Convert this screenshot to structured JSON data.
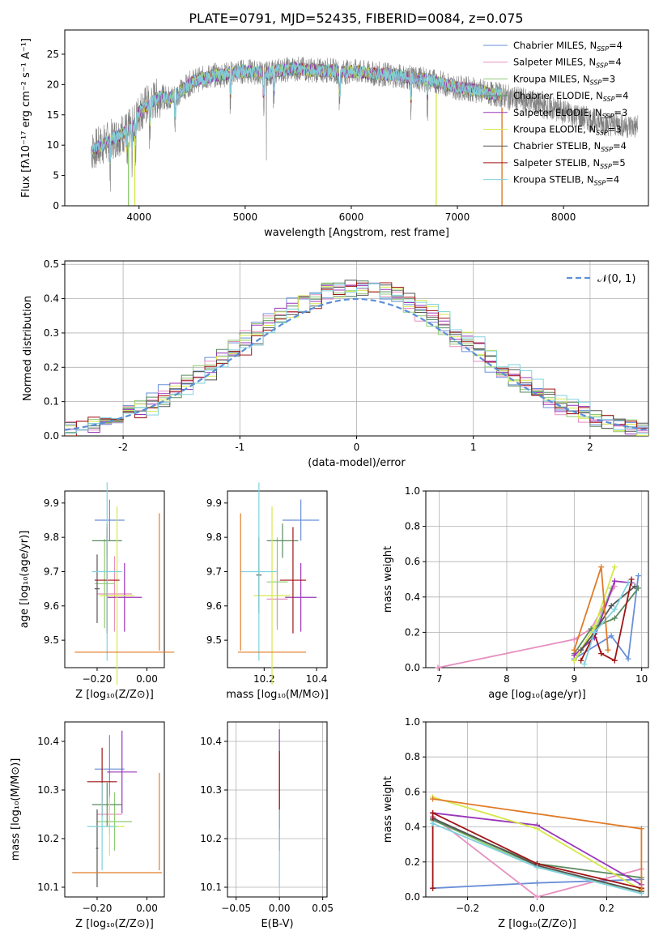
{
  "figure": {
    "title": "PLATE=0791, MJD=52435, FIBERID=0084, z=0.075"
  },
  "colors": {
    "series": [
      "#6a8fd8",
      "#e68fc0",
      "#8fcc72",
      "#5a8a60",
      "#9a35b8",
      "#d6e84a",
      "#555555",
      "#a01515",
      "#7fd2de"
    ],
    "orange": "#e07b28",
    "normal": "#5b8fd9",
    "grid": "#b0b0b0"
  },
  "chart_data": [
    {
      "id": "spectrum",
      "type": "line",
      "xlabel": "wavelength [Angstrom, rest frame]",
      "ylabel": "Flux [fλ10⁻¹⁷ erg cm⁻² s⁻¹ A⁻¹]",
      "xlim": [
        3300,
        8800
      ],
      "ylim": [
        0,
        29
      ],
      "xticks": [
        4000,
        5000,
        6000,
        7000,
        8000
      ],
      "yticks": [
        0,
        5,
        10,
        15,
        20,
        25
      ],
      "grid": false,
      "legend_position": "top-right",
      "legend": [
        {
          "label": "Chabrier MILES, N",
          "sub": "SSP",
          "suffix": "=4"
        },
        {
          "label": "Salpeter MILES, N",
          "sub": "SSP",
          "suffix": "=4"
        },
        {
          "label": "Kroupa MILES, N",
          "sub": "SSP",
          "suffix": "=3"
        },
        {
          "label": "Chabrier ELODIE, N",
          "sub": "SSP",
          "suffix": "=4"
        },
        {
          "label": "Salpeter ELODIE, N",
          "sub": "SSP",
          "suffix": "=3"
        },
        {
          "label": "Kroupa ELODIE, N",
          "sub": "SSP",
          "suffix": "=3"
        },
        {
          "label": "Chabrier STELIB, N",
          "sub": "SSP",
          "suffix": "=4"
        },
        {
          "label": "Salpeter STELIB, N",
          "sub": "SSP",
          "suffix": "=5"
        },
        {
          "label": "Kroupa STELIB, N",
          "sub": "SSP",
          "suffix": "=4"
        }
      ],
      "continuum": [
        [
          3550,
          9
        ],
        [
          3650,
          10
        ],
        [
          3750,
          11
        ],
        [
          3850,
          12
        ],
        [
          3950,
          13
        ],
        [
          4000,
          15.5
        ],
        [
          4100,
          17
        ],
        [
          4200,
          18
        ],
        [
          4300,
          17.8
        ],
        [
          4400,
          19
        ],
        [
          4500,
          20.5
        ],
        [
          4600,
          21
        ],
        [
          4700,
          21.5
        ],
        [
          4800,
          21.6
        ],
        [
          4900,
          22
        ],
        [
          5000,
          22.2
        ],
        [
          5100,
          22
        ],
        [
          5200,
          21.8
        ],
        [
          5300,
          22.3
        ],
        [
          5400,
          22.5
        ],
        [
          5500,
          22.6
        ],
        [
          5600,
          22.4
        ],
        [
          5700,
          22.3
        ],
        [
          5800,
          22.4
        ],
        [
          5900,
          22.0
        ],
        [
          6000,
          22.2
        ],
        [
          6100,
          22.0
        ],
        [
          6200,
          21.8
        ],
        [
          6300,
          21.7
        ],
        [
          6400,
          21.5
        ],
        [
          6500,
          21.3
        ],
        [
          6600,
          21.0
        ],
        [
          6700,
          20.8
        ],
        [
          6800,
          20.5
        ],
        [
          6900,
          20.0
        ],
        [
          7000,
          19.5
        ],
        [
          7100,
          19.3
        ],
        [
          7200,
          19.0
        ],
        [
          7300,
          18.5
        ],
        [
          7400,
          18.3
        ],
        [
          7500,
          17.8
        ],
        [
          7600,
          17.5
        ],
        [
          7700,
          17.2
        ],
        [
          7800,
          16.5
        ],
        [
          7900,
          16.0
        ],
        [
          8000,
          15.5
        ],
        [
          8100,
          15.0
        ],
        [
          8200,
          14.5
        ],
        [
          8300,
          14.0
        ],
        [
          8400,
          13.5
        ],
        [
          8500,
          13.5
        ],
        [
          8600,
          13.2
        ],
        [
          8700,
          13.0
        ]
      ],
      "model_range": [
        3550,
        7420
      ]
    },
    {
      "id": "residual-histogram",
      "type": "bar",
      "xlabel": "(data-model)/error",
      "ylabel": "Normed distribution",
      "xlim": [
        -2.5,
        2.5
      ],
      "ylim": [
        0,
        0.51
      ],
      "xticks": [
        -2,
        -1,
        0,
        1,
        2
      ],
      "yticks": [
        0.0,
        0.1,
        0.2,
        0.3,
        0.4,
        0.5
      ],
      "grid": true,
      "legend_position": "top-right",
      "normal_label": "𝒩(0, 1)",
      "bin_width": 0.1
    },
    {
      "id": "age-vs-z",
      "type": "scatter",
      "xlabel": "Z [log₁₀(Z/Z⊙)]",
      "ylabel": "age  [log₁₀(age/yr)]",
      "xlim": [
        -0.33,
        0.07
      ],
      "ylim": [
        9.42,
        9.935
      ],
      "xticks": [
        -0.2,
        0.0
      ],
      "xticklabels": [
        "−0.20",
        "0.00"
      ],
      "yticks": [
        9.5,
        9.6,
        9.7,
        9.8,
        9.9
      ],
      "points": [
        {
          "x": -0.15,
          "y": 9.85,
          "xerr": 0.06,
          "yerr": 0.06,
          "c": 0
        },
        {
          "x": -0.13,
          "y": 9.635,
          "xerr": 0.07,
          "yerr": 0.11,
          "c": 1
        },
        {
          "x": -0.17,
          "y": 9.665,
          "xerr": 0.04,
          "yerr": 0.13,
          "c": 2
        },
        {
          "x": -0.16,
          "y": 9.79,
          "xerr": 0.06,
          "yerr": 0.05,
          "c": 3
        },
        {
          "x": -0.09,
          "y": 9.625,
          "xerr": 0.07,
          "yerr": 0.1,
          "c": 4
        },
        {
          "x": -0.12,
          "y": 9.63,
          "xerr": 0.07,
          "yerr": 0.26,
          "c": 5
        },
        {
          "x": -0.2,
          "y": 9.65,
          "xerr": 0.01,
          "yerr": 0.1,
          "c": 6
        },
        {
          "x": -0.16,
          "y": 9.675,
          "xerr": 0.05,
          "yerr": 0.155,
          "c": 7
        },
        {
          "x": -0.16,
          "y": 9.7,
          "xerr": 0.06,
          "yerr": 0.26,
          "c": 8
        },
        {
          "x": -0.09,
          "y": 9.465,
          "xerr": 0.2,
          "yerr": 0,
          "c": "orange"
        },
        {
          "x": 0.05,
          "y": 9.67,
          "xerr": 0,
          "yerr": 0.2,
          "c": "orange"
        }
      ]
    },
    {
      "id": "age-vs-mass",
      "type": "scatter",
      "xlabel": "mass [log₁₀(M/M⊙)]",
      "ylabel": "",
      "xlim": [
        10.06,
        10.44
      ],
      "ylim": [
        9.42,
        9.935
      ],
      "xticks": [
        10.2,
        10.4
      ],
      "xticklabels": [
        "10.2",
        "10.4"
      ],
      "yticks": [
        9.5,
        9.6,
        9.7,
        9.8,
        9.9
      ],
      "points": [
        {
          "x": 10.34,
          "y": 9.85,
          "xerr": 0.07,
          "yerr": 0.06,
          "c": 0
        },
        {
          "x": 10.25,
          "y": 9.62,
          "xerr": 0.04,
          "yerr": 0.09,
          "c": 1
        },
        {
          "x": 10.25,
          "y": 9.67,
          "xerr": 0.04,
          "yerr": 0.13,
          "c": 2
        },
        {
          "x": 10.27,
          "y": 9.79,
          "xerr": 0.06,
          "yerr": 0.05,
          "c": 3
        },
        {
          "x": 10.34,
          "y": 9.625,
          "xerr": 0.06,
          "yerr": 0.1,
          "c": 4
        },
        {
          "x": 10.23,
          "y": 9.63,
          "xerr": 0.07,
          "yerr": 0.26,
          "c": 5
        },
        {
          "x": 10.18,
          "y": 9.69,
          "xerr": 0.01,
          "yerr": 0.11,
          "c": 6
        },
        {
          "x": 10.31,
          "y": 9.675,
          "xerr": 0.05,
          "yerr": 0.155,
          "c": 7
        },
        {
          "x": 10.18,
          "y": 9.7,
          "xerr": 0.07,
          "yerr": 0.26,
          "c": 8
        },
        {
          "x": 10.23,
          "y": 9.465,
          "xerr": 0.13,
          "yerr": 0,
          "c": "orange"
        },
        {
          "x": 10.11,
          "y": 9.67,
          "xerr": 0,
          "yerr": 0.2,
          "c": "orange"
        }
      ]
    },
    {
      "id": "weight-vs-age",
      "type": "line",
      "xlabel": "age  [log₁₀(age/yr)]",
      "ylabel": "mass weight",
      "xlim": [
        6.8,
        10.1
      ],
      "ylim": [
        0,
        1
      ],
      "xticks": [
        7,
        8,
        9,
        10
      ],
      "yticks": [
        0.0,
        0.2,
        0.4,
        0.6,
        0.8,
        1.0
      ],
      "grid": true,
      "series": [
        {
          "c": 0,
          "points": [
            [
              9.0,
              0.05
            ],
            [
              9.55,
              0.18
            ],
            [
              9.8,
              0.05
            ],
            [
              9.95,
              0.52
            ]
          ]
        },
        {
          "c": 1,
          "points": [
            [
              6.98,
              0.0
            ],
            [
              9.0,
              0.16
            ],
            [
              9.25,
              0.22
            ],
            [
              9.6,
              0.46
            ]
          ]
        },
        {
          "c": 2,
          "points": [
            [
              9.0,
              0.04
            ],
            [
              9.3,
              0.2
            ],
            [
              9.55,
              0.45
            ]
          ]
        },
        {
          "c": 3,
          "points": [
            [
              9.0,
              0.08
            ],
            [
              9.25,
              0.22
            ],
            [
              9.6,
              0.28
            ],
            [
              9.95,
              0.45
            ]
          ]
        },
        {
          "c": 4,
          "points": [
            [
              9.0,
              0.07
            ],
            [
              9.3,
              0.17
            ],
            [
              9.6,
              0.49
            ],
            [
              9.85,
              0.48
            ]
          ]
        },
        {
          "c": 5,
          "points": [
            [
              9.0,
              0.04
            ],
            [
              9.3,
              0.23
            ],
            [
              9.6,
              0.57
            ]
          ]
        },
        {
          "c": 6,
          "points": [
            [
              9.1,
              0.1
            ],
            [
              9.3,
              0.2
            ],
            [
              9.55,
              0.35
            ],
            [
              9.9,
              0.46
            ]
          ]
        },
        {
          "c": 7,
          "points": [
            [
              9.1,
              0.04
            ],
            [
              9.3,
              0.19
            ],
            [
              9.4,
              0.08
            ],
            [
              9.6,
              0.04
            ],
            [
              9.85,
              0.5
            ]
          ]
        },
        {
          "c": 8,
          "points": [
            [
              9.15,
              0.02
            ],
            [
              9.3,
              0.2
            ],
            [
              9.6,
              0.33
            ],
            [
              9.8,
              0.48
            ]
          ]
        },
        {
          "c": "orange",
          "points": [
            [
              9.0,
              0.1
            ],
            [
              9.4,
              0.57
            ],
            [
              9.5,
              0.1
            ]
          ]
        }
      ]
    },
    {
      "id": "mass-vs-z",
      "type": "scatter",
      "xlabel": "Z [log₁₀(Z/Z⊙)]",
      "ylabel": "mass [log₁₀(M/M⊙)]",
      "xlim": [
        -0.33,
        0.07
      ],
      "ylim": [
        10.08,
        10.44
      ],
      "xticks": [
        -0.2,
        0.0
      ],
      "xticklabels": [
        "−0.20",
        "0.00"
      ],
      "yticks": [
        10.1,
        10.2,
        10.3,
        10.4
      ],
      "points": [
        {
          "x": -0.15,
          "y": 10.343,
          "xerr": 0.06,
          "yerr": 0.07,
          "c": 0
        },
        {
          "x": -0.15,
          "y": 10.25,
          "xerr": 0.05,
          "yerr": 0.04,
          "c": 1
        },
        {
          "x": -0.13,
          "y": 10.235,
          "xerr": 0.07,
          "yerr": 0.06,
          "c": 2
        },
        {
          "x": -0.16,
          "y": 10.27,
          "xerr": 0.06,
          "yerr": 0.045,
          "c": 3
        },
        {
          "x": -0.1,
          "y": 10.337,
          "xerr": 0.06,
          "yerr": 0.085,
          "c": 4
        },
        {
          "x": -0.15,
          "y": 10.225,
          "xerr": 0.06,
          "yerr": 0.06,
          "c": 5
        },
        {
          "x": -0.2,
          "y": 10.18,
          "xerr": 0.005,
          "yerr": 0.08,
          "c": 6
        },
        {
          "x": -0.18,
          "y": 10.317,
          "xerr": 0.06,
          "yerr": 0.07,
          "c": 7
        },
        {
          "x": -0.18,
          "y": 10.225,
          "xerr": 0.06,
          "yerr": 0.09,
          "c": 8
        },
        {
          "x": -0.12,
          "y": 10.13,
          "xerr": 0.18,
          "yerr": 0,
          "c": "orange"
        },
        {
          "x": 0.05,
          "y": 10.235,
          "xerr": 0,
          "yerr": 0.1,
          "c": "orange"
        }
      ]
    },
    {
      "id": "mass-vs-ebv",
      "type": "scatter",
      "xlabel": "E(B-V)",
      "ylabel": "",
      "xlim": [
        -0.06,
        0.055
      ],
      "ylim": [
        10.08,
        10.44
      ],
      "xticks": [
        -0.05,
        0.0,
        0.05
      ],
      "xticklabels": [
        "−0.05",
        "0.00",
        "0.05"
      ],
      "yticks": [
        10.1,
        10.2,
        10.3,
        10.4
      ],
      "grid": true,
      "points": [
        {
          "x": 0.0,
          "y": 10.3,
          "xerr": 0,
          "yerr": 0.125,
          "c": 4
        },
        {
          "x": 0.0,
          "y": 10.3,
          "xerr": 0,
          "yerr": 0.08,
          "c": 7
        },
        {
          "x": 0.0,
          "y": 10.18,
          "xerr": 0,
          "yerr": 0.08,
          "c": 8
        }
      ]
    },
    {
      "id": "weight-vs-z",
      "type": "line",
      "xlabel": "Z [log₁₀(Z/Z⊙)]",
      "ylabel": "mass weight",
      "xlim": [
        -0.32,
        0.32
      ],
      "ylim": [
        0,
        1
      ],
      "xticks": [
        -0.2,
        0.0,
        0.2
      ],
      "xticklabels": [
        "−0.2",
        "0.0",
        "0.2"
      ],
      "yticks": [
        0.0,
        0.2,
        0.4,
        0.6,
        0.8,
        1.0
      ],
      "grid": true,
      "series": [
        {
          "c": 0,
          "points": [
            [
              -0.3,
              0.05
            ],
            [
              0.0,
              0.08
            ],
            [
              0.3,
              0.1
            ]
          ]
        },
        {
          "c": 1,
          "points": [
            [
              -0.3,
              0.46
            ],
            [
              0.0,
              0.0
            ],
            [
              0.3,
              0.16
            ]
          ]
        },
        {
          "c": 2,
          "points": [
            [
              -0.3,
              0.44
            ],
            [
              0.0,
              0.17
            ],
            [
              0.3,
              0.03
            ]
          ]
        },
        {
          "c": 3,
          "points": [
            [
              -0.3,
              0.44
            ],
            [
              0.0,
              0.19
            ],
            [
              0.3,
              0.11
            ]
          ]
        },
        {
          "c": 4,
          "points": [
            [
              -0.3,
              0.48
            ],
            [
              0.0,
              0.41
            ],
            [
              0.3,
              0.07
            ]
          ]
        },
        {
          "c": 5,
          "points": [
            [
              -0.3,
              0.57
            ],
            [
              0.0,
              0.39
            ],
            [
              0.3,
              0.04
            ]
          ]
        },
        {
          "c": 6,
          "points": [
            [
              -0.3,
              0.45
            ],
            [
              0.0,
              0.18
            ],
            [
              0.3,
              0.03
            ]
          ]
        },
        {
          "c": 7,
          "points": [
            [
              -0.3,
              0.05
            ],
            [
              -0.3,
              0.48
            ],
            [
              0.0,
              0.19
            ],
            [
              0.3,
              0.05
            ]
          ]
        },
        {
          "c": 8,
          "points": [
            [
              -0.3,
              0.42
            ],
            [
              0.0,
              0.17
            ],
            [
              0.3,
              0.02
            ]
          ]
        },
        {
          "c": "orange",
          "points": [
            [
              -0.3,
              0.56
            ],
            [
              0.3,
              0.39
            ],
            [
              0.3,
              0.04
            ]
          ]
        }
      ]
    }
  ]
}
